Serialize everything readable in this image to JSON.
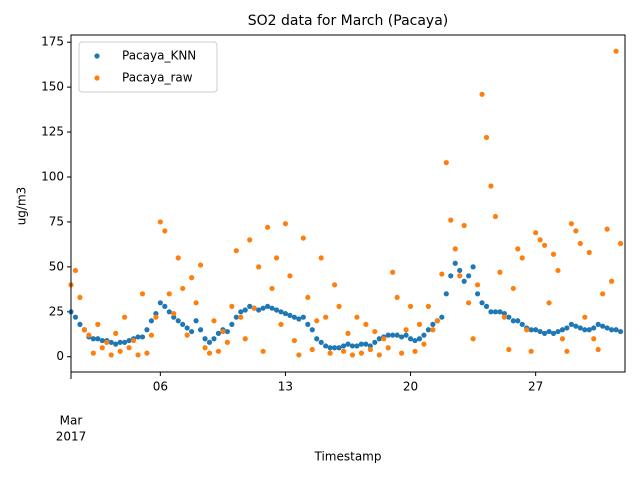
{
  "chart_data": {
    "type": "scatter",
    "title": "SO2 data for March (Pacaya)",
    "xlabel": "Timestamp",
    "ylabel": "ug/m3",
    "x_year_label": "2017",
    "xlim": [
      1,
      32
    ],
    "xticks": [
      {
        "value": 1,
        "label": "Mar"
      },
      {
        "value": 6,
        "label": "06"
      },
      {
        "value": 13,
        "label": "13"
      },
      {
        "value": 20,
        "label": "20"
      },
      {
        "value": 27,
        "label": "27"
      }
    ],
    "ylim": [
      -8.5,
      179
    ],
    "yticks": [
      0,
      25,
      50,
      75,
      100,
      125,
      150,
      175
    ],
    "legend": "upper left",
    "x": [
      1,
      1.25,
      1.5,
      1.75,
      2,
      2.25,
      2.5,
      2.75,
      3,
      3.25,
      3.5,
      3.75,
      4,
      4.25,
      4.5,
      4.75,
      5,
      5.25,
      5.5,
      5.75,
      6,
      6.25,
      6.5,
      6.75,
      7,
      7.25,
      7.5,
      7.75,
      8,
      8.25,
      8.5,
      8.75,
      9,
      9.25,
      9.5,
      9.75,
      10,
      10.25,
      10.5,
      10.75,
      11,
      11.25,
      11.5,
      11.75,
      12,
      12.25,
      12.5,
      12.75,
      13,
      13.25,
      13.5,
      13.75,
      14,
      14.25,
      14.5,
      14.75,
      15,
      15.25,
      15.5,
      15.75,
      16,
      16.25,
      16.5,
      16.75,
      17,
      17.25,
      17.5,
      17.75,
      18,
      18.25,
      18.5,
      18.75,
      19,
      19.25,
      19.5,
      19.75,
      20,
      20.25,
      20.5,
      20.75,
      21,
      21.25,
      21.5,
      21.75,
      22,
      22.25,
      22.5,
      22.75,
      23,
      23.25,
      23.5,
      23.75,
      24,
      24.25,
      24.5,
      24.75,
      25,
      25.25,
      25.5,
      25.75,
      26,
      26.25,
      26.5,
      26.75,
      27,
      27.25,
      27.5,
      27.75,
      28,
      28.25,
      28.5,
      28.75,
      29,
      29.25,
      29.5,
      29.75,
      30,
      30.25,
      30.5,
      30.75,
      31,
      31.25,
      31.5,
      31.75
    ],
    "series": [
      {
        "name": "Pacaya_KNN",
        "color": "#1f77b4",
        "values": [
          25,
          22,
          18,
          15,
          11,
          10,
          10,
          9,
          9,
          8,
          7,
          8,
          8,
          9,
          10,
          11,
          11,
          15,
          20,
          24,
          30,
          28,
          25,
          22,
          20,
          18,
          16,
          14,
          20,
          15,
          10,
          8,
          10,
          13,
          15,
          14,
          18,
          22,
          25,
          26,
          28,
          27,
          26,
          27,
          28,
          27,
          26,
          25,
          24,
          23,
          22,
          21,
          22,
          18,
          15,
          10,
          8,
          6,
          5,
          5,
          5,
          6,
          7,
          6,
          6,
          7,
          7,
          6,
          8,
          10,
          11,
          12,
          12,
          12,
          11,
          12,
          10,
          9,
          10,
          12,
          15,
          18,
          20,
          22,
          35,
          45,
          52,
          48,
          42,
          45,
          50,
          35,
          30,
          28,
          25,
          25,
          25,
          24,
          22,
          20,
          20,
          18,
          16,
          15,
          15,
          14,
          13,
          14,
          13,
          14,
          15,
          16,
          18,
          17,
          16,
          15,
          15,
          16,
          18,
          17,
          16,
          15,
          15,
          14
        ]
      },
      {
        "name": "Pacaya_raw",
        "color": "#ff7f0e",
        "values": [
          40,
          48,
          33,
          15,
          12,
          2,
          18,
          5,
          8,
          1,
          13,
          3,
          22,
          5,
          9,
          1,
          35,
          2,
          12,
          22,
          75,
          70,
          35,
          24,
          55,
          38,
          12,
          44,
          30,
          51,
          5,
          2,
          20,
          3,
          14,
          8,
          28,
          59,
          22,
          10,
          65,
          27,
          50,
          3,
          72,
          38,
          55,
          18,
          74,
          45,
          9,
          1,
          66,
          33,
          4,
          20,
          55,
          22,
          2,
          40,
          28,
          3,
          13,
          1,
          22,
          2,
          18,
          4,
          14,
          1,
          10,
          5,
          47,
          33,
          2,
          15,
          28,
          3,
          18,
          7,
          28,
          15,
          20,
          46,
          108,
          76,
          60,
          45,
          73,
          30,
          10,
          40,
          146,
          122,
          95,
          78,
          47,
          22,
          4,
          38,
          60,
          55,
          15,
          3,
          69,
          65,
          62,
          30,
          57,
          48,
          10,
          3,
          74,
          70,
          63,
          22,
          58,
          10,
          4,
          35,
          71,
          42,
          170,
          63
        ]
      }
    ]
  }
}
